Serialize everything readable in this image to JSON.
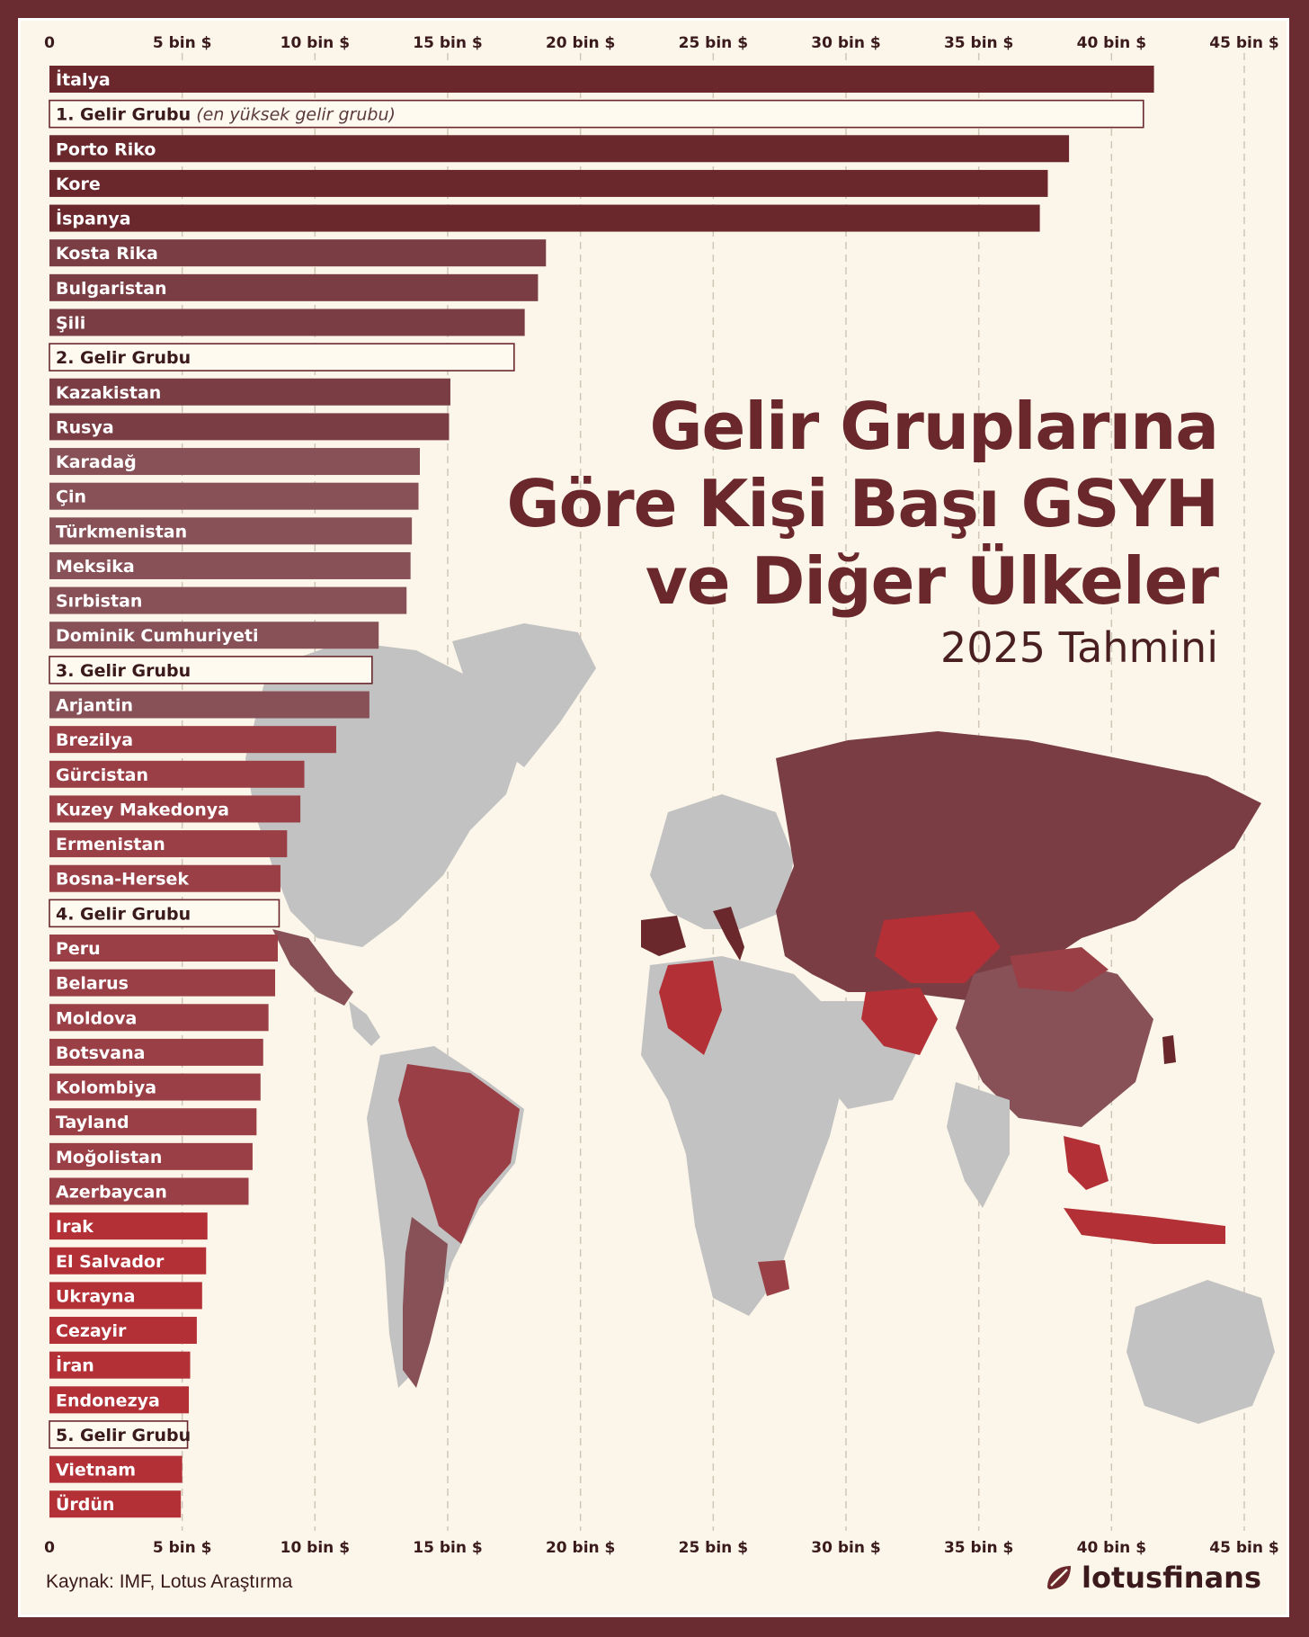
{
  "title_lines": [
    "Gelir Gruplarına",
    "Göre Kişi Başı GSYH",
    "ve Diğer Ülkeler"
  ],
  "subtitle": "2025 Tahmini",
  "source": "Kaynak: IMF, Lotus Araştırma",
  "brand": "lotusfinans",
  "colors": {
    "background": "#fbf6e9",
    "frame": "#6a2c30",
    "grid": "#cfc6b8",
    "group_fill": "#fffaf0",
    "group_stroke": "#6a272c",
    "tier1": "#6a272c",
    "tier2": "#7a3d44",
    "tier3": "#875157",
    "tier4": "#9a3f45",
    "tier5": "#b23036",
    "map_grey": "#c2c2c2"
  },
  "chart_data": {
    "type": "bar",
    "orientation": "horizontal",
    "x_ticks": [
      "0",
      "5 bin $",
      "10 bin $",
      "15 bin $",
      "20 bin $",
      "25 bin $",
      "30 bin $",
      "35 bin $",
      "40 bin $",
      "45 bin $"
    ],
    "xlim": [
      0,
      45000
    ],
    "grid": true,
    "bars": [
      {
        "label": "İtalya",
        "value": 41600,
        "kind": "country",
        "tier": 1
      },
      {
        "label": "1. Gelir Grubu",
        "sub": "(en yüksek gelir grubu)",
        "value": 41200,
        "kind": "group"
      },
      {
        "label": "Porto Riko",
        "value": 38400,
        "kind": "country",
        "tier": 1
      },
      {
        "label": "Kore",
        "value": 37600,
        "kind": "country",
        "tier": 1
      },
      {
        "label": "İspanya",
        "value": 37300,
        "kind": "country",
        "tier": 1
      },
      {
        "label": "Kosta Rika",
        "value": 18700,
        "kind": "country",
        "tier": 2
      },
      {
        "label": "Bulgaristan",
        "value": 18400,
        "kind": "country",
        "tier": 2
      },
      {
        "label": "Şili",
        "value": 17900,
        "kind": "country",
        "tier": 2
      },
      {
        "label": "2. Gelir Grubu",
        "value": 17500,
        "kind": "group"
      },
      {
        "label": "Kazakistan",
        "value": 15100,
        "kind": "country",
        "tier": 2
      },
      {
        "label": "Rusya",
        "value": 15050,
        "kind": "country",
        "tier": 2
      },
      {
        "label": "Karadağ",
        "value": 13950,
        "kind": "country",
        "tier": 3
      },
      {
        "label": "Çin",
        "value": 13900,
        "kind": "country",
        "tier": 3
      },
      {
        "label": "Türkmenistan",
        "value": 13650,
        "kind": "country",
        "tier": 3
      },
      {
        "label": "Meksika",
        "value": 13600,
        "kind": "country",
        "tier": 3
      },
      {
        "label": "Sırbistan",
        "value": 13450,
        "kind": "country",
        "tier": 3
      },
      {
        "label": "Dominik Cumhuriyeti",
        "value": 12400,
        "kind": "country",
        "tier": 3
      },
      {
        "label": "3. Gelir Grubu",
        "value": 12150,
        "kind": "group"
      },
      {
        "label": "Arjantin",
        "value": 12050,
        "kind": "country",
        "tier": 3
      },
      {
        "label": "Brezilya",
        "value": 10800,
        "kind": "country",
        "tier": 4
      },
      {
        "label": "Gürcistan",
        "value": 9600,
        "kind": "country",
        "tier": 4
      },
      {
        "label": "Kuzey Makedonya",
        "value": 9450,
        "kind": "country",
        "tier": 4
      },
      {
        "label": "Ermenistan",
        "value": 8950,
        "kind": "country",
        "tier": 4
      },
      {
        "label": "Bosna-Hersek",
        "value": 8700,
        "kind": "country",
        "tier": 4
      },
      {
        "label": "4. Gelir Grubu",
        "value": 8650,
        "kind": "group"
      },
      {
        "label": "Peru",
        "value": 8600,
        "kind": "country",
        "tier": 4
      },
      {
        "label": "Belarus",
        "value": 8500,
        "kind": "country",
        "tier": 4
      },
      {
        "label": "Moldova",
        "value": 8250,
        "kind": "country",
        "tier": 4
      },
      {
        "label": "Botsvana",
        "value": 8050,
        "kind": "country",
        "tier": 4
      },
      {
        "label": "Kolombiya",
        "value": 7950,
        "kind": "country",
        "tier": 4
      },
      {
        "label": "Tayland",
        "value": 7800,
        "kind": "country",
        "tier": 4
      },
      {
        "label": "Moğolistan",
        "value": 7650,
        "kind": "country",
        "tier": 4
      },
      {
        "label": "Azerbaycan",
        "value": 7500,
        "kind": "country",
        "tier": 4
      },
      {
        "label": "Irak",
        "value": 5950,
        "kind": "country",
        "tier": 5
      },
      {
        "label": "El Salvador",
        "value": 5900,
        "kind": "country",
        "tier": 5
      },
      {
        "label": "Ukrayna",
        "value": 5750,
        "kind": "country",
        "tier": 5
      },
      {
        "label": "Cezayir",
        "value": 5550,
        "kind": "country",
        "tier": 5
      },
      {
        "label": "İran",
        "value": 5300,
        "kind": "country",
        "tier": 5
      },
      {
        "label": "Endonezya",
        "value": 5250,
        "kind": "country",
        "tier": 5
      },
      {
        "label": "5. Gelir Grubu",
        "value": 5200,
        "kind": "group"
      },
      {
        "label": "Vietnam",
        "value": 5000,
        "kind": "country",
        "tier": 5
      },
      {
        "label": "Ürdün",
        "value": 4950,
        "kind": "country",
        "tier": 5
      }
    ]
  }
}
